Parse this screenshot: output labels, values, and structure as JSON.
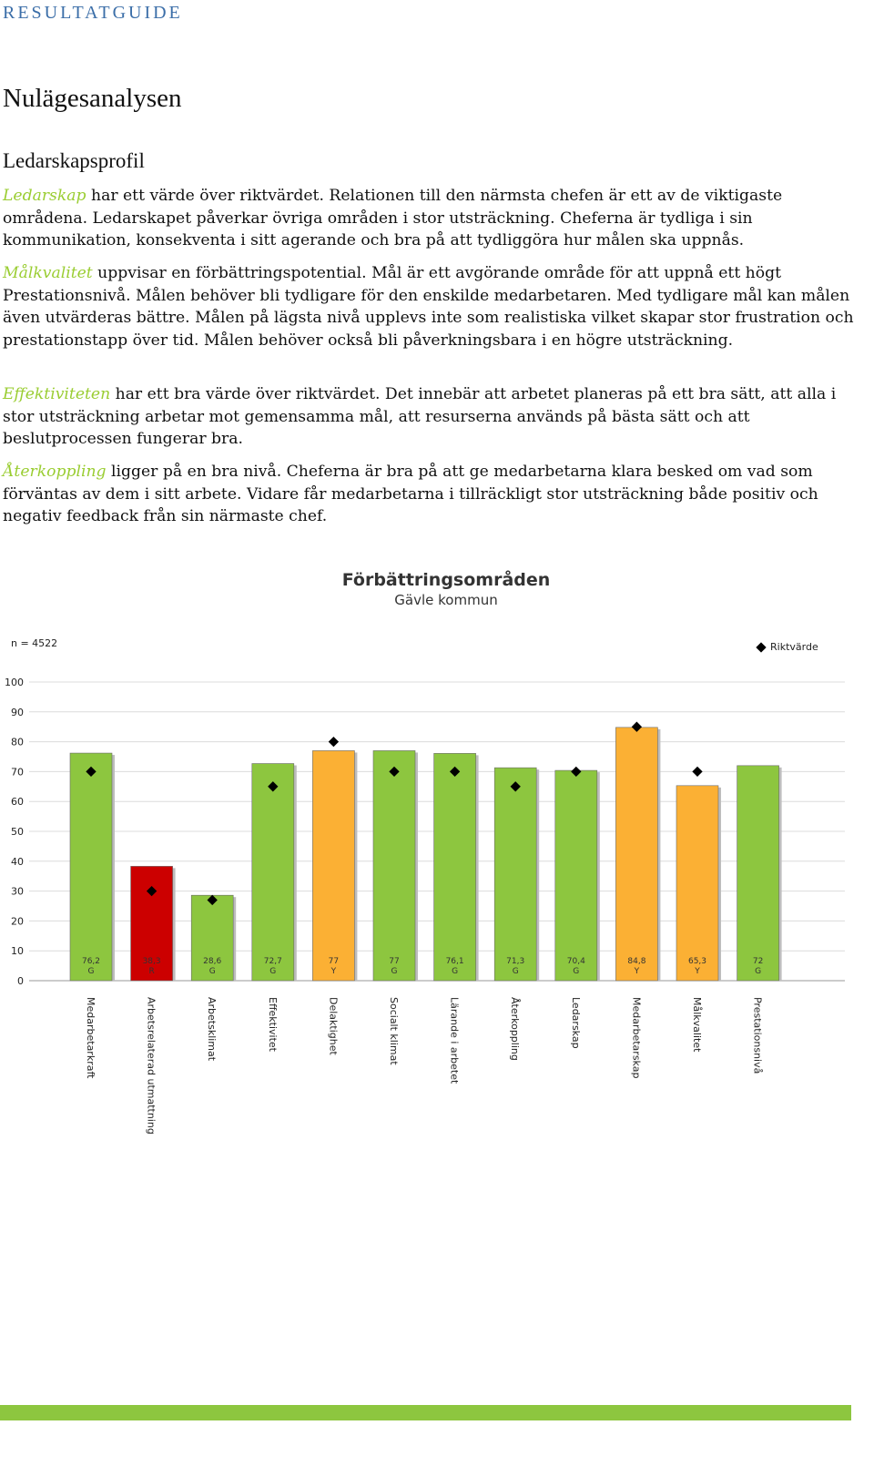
{
  "header": "RESULTATGUIDE",
  "title": "Nulägesanalysen",
  "section": "Ledarskapsprofil",
  "paragraphs": [
    {
      "keyword": "Ledarskap",
      "text": " har ett värde över riktvärdet. Relationen till den närmsta chefen är ett av de viktigaste områdena. Ledarskapet påverkar övriga områden i stor utsträckning. Cheferna är tydliga i sin kommunikation, konsekventa i sitt agerande och bra på att tydliggöra hur målen ska uppnås."
    },
    {
      "keyword": "Målkvalitet",
      "text": " uppvisar en förbättringspotential. Mål är ett avgörande område för att uppnå ett högt Prestationsnivå. Målen behöver bli tydligare för den enskilde medarbetaren. Med tydligare mål kan målen även utvärderas bättre. Målen på lägsta nivå upplevs inte som realistiska vilket skapar stor frustration och prestationstapp över tid. Målen behöver också bli påverkningsbara i en högre utsträckning."
    },
    {
      "keyword": "Effektiviteten",
      "text": " har ett bra värde över riktvärdet. Det innebär att arbetet planeras på ett bra sätt, att alla i stor utsträckning arbetar mot gemensamma mål, att resurserna används på bästa sätt och att beslutprocessen fungerar bra."
    },
    {
      "keyword": "Återkoppling",
      "text": " ligger på en bra nivå. Cheferna är bra på att ge medarbetarna klara besked om vad som förväntas av dem i sitt arbete. Vidare får medarbetarna i tillräckligt stor utsträckning både positiv och negativ feedback från sin närmaste chef."
    }
  ],
  "colors": {
    "header": "#3b6ea8",
    "keyword": "#9acd32",
    "footer_bar": "#8dc63f",
    "G": "#8dc63f",
    "Y": "#fbb034",
    "R": "#cc0000"
  },
  "chart_data": {
    "type": "bar",
    "title": "Förbättringsområden",
    "subtitle": "Gävle kommun",
    "n_label": "n = 4522",
    "legend": {
      "label": "Riktvärde",
      "position": "top-right"
    },
    "ylim": [
      0,
      100
    ],
    "yticks": [
      0,
      10,
      20,
      30,
      40,
      50,
      60,
      70,
      80,
      90,
      100
    ],
    "grid": true,
    "categories": [
      "Medarbetarkraft",
      "Arbetsrelaterad utmattning",
      "Arbetsklimat",
      "Effektivitet",
      "Delaktighet",
      "Socialt klimat",
      "Lärande i arbetet",
      "Återkoppling",
      "Ledarskap",
      "Medarbetarskap",
      "Målkvalitet",
      "Prestationsnivå"
    ],
    "values": [
      76.2,
      38.3,
      28.6,
      72.7,
      77,
      77,
      76.1,
      71.3,
      70.4,
      84.8,
      65.3,
      72
    ],
    "value_labels": [
      "76,2",
      "38,3",
      "28,6",
      "72,7",
      "77",
      "77",
      "76,1",
      "71,3",
      "70,4",
      "84,8",
      "65,3",
      "72"
    ],
    "grades": [
      "G",
      "R",
      "G",
      "G",
      "Y",
      "G",
      "G",
      "G",
      "G",
      "Y",
      "Y",
      "G"
    ],
    "riktvarde": [
      70,
      30,
      27,
      65,
      80,
      70,
      70,
      65,
      70,
      85,
      70,
      null
    ]
  }
}
